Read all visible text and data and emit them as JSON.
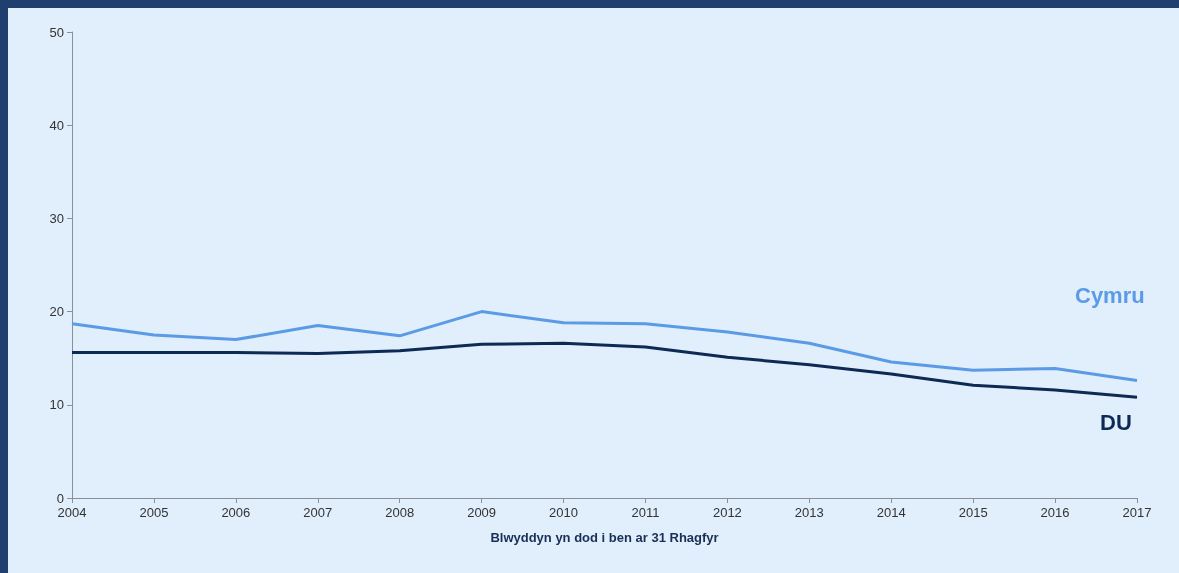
{
  "chart_data": {
    "type": "line",
    "xlabel": "Blwyddyn yn dod i ben ar 31 Rhagfyr",
    "categories": [
      "2004",
      "2005",
      "2006",
      "2007",
      "2008",
      "2009",
      "2010",
      "2011",
      "2012",
      "2013",
      "2014",
      "2015",
      "2016",
      "2017"
    ],
    "series": [
      {
        "name": "Cymru",
        "color": "#5b9be6",
        "values": [
          18.7,
          17.5,
          17.0,
          18.5,
          17.4,
          20.0,
          18.8,
          18.7,
          17.8,
          16.6,
          14.6,
          13.7,
          13.9,
          12.6
        ]
      },
      {
        "name": "DU",
        "color": "#0d2a55",
        "values": [
          15.6,
          15.6,
          15.6,
          15.5,
          15.8,
          16.5,
          16.6,
          16.2,
          15.1,
          14.3,
          13.3,
          12.1,
          11.6,
          10.8
        ]
      }
    ],
    "ylim": [
      0,
      50
    ],
    "yticks": [
      0,
      10,
      20,
      30,
      40,
      50
    ],
    "grid": false,
    "legend": false,
    "marker": "none",
    "line_style": "solid"
  }
}
